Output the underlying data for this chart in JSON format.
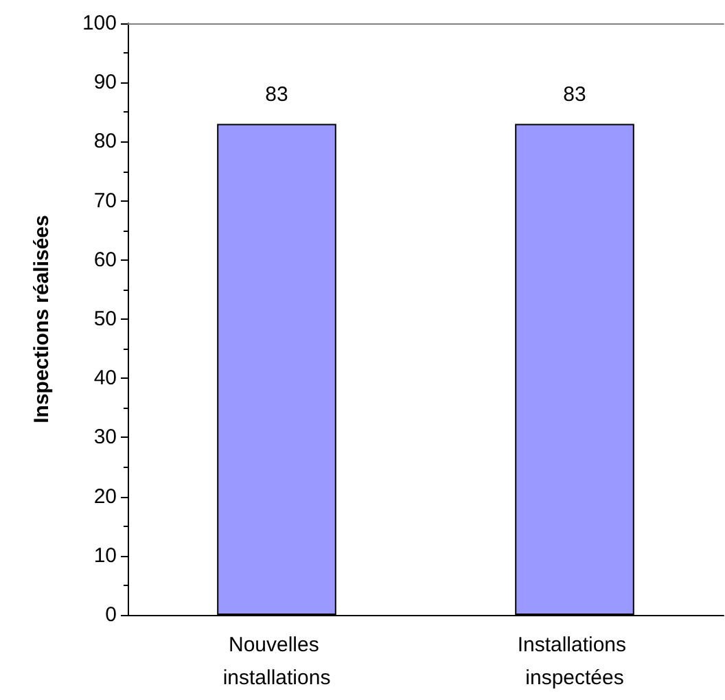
{
  "chart_data": {
    "type": "bar",
    "ylabel": "Inspections réalisées",
    "categories": [
      "Nouvelles installations",
      "Installations inspectées"
    ],
    "values": [
      83,
      83
    ],
    "color": "#9999ff",
    "ylim": [
      0,
      100
    ],
    "yticks": [
      0,
      10,
      20,
      30,
      40,
      50,
      60,
      70,
      80,
      90,
      100
    ],
    "grid": false,
    "data_labels": true
  }
}
